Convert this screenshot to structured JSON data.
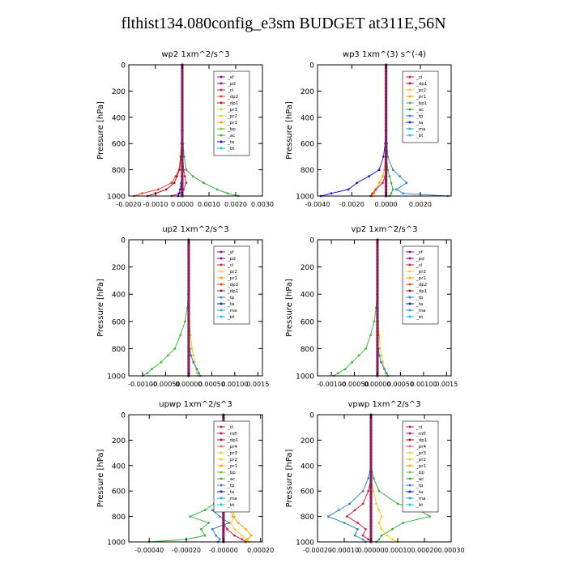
{
  "figure_title": "flthist134.080config_e3sm  BUDGET at311E,56N",
  "colors": {
    "sf": "#8b1a8b",
    "pd": "#7a1a9c",
    "cl": "#d4244a",
    "dp1": "#b01818",
    "dp2": "#e8413b",
    "pr1": "#ffa500",
    "pr2": "#f0d020",
    "pr3": "#c8e040",
    "pr4": "#e86060",
    "bp": "#66cc33",
    "bp1": "#44bb44",
    "ac": "#3cb043",
    "tp": "#3388cc",
    "ta": "#1a1acc",
    "ma": "#33aacc",
    "bt": "#00ccee",
    "mfl": "#aa2266",
    "bt_red": "#dd0000"
  },
  "chart_data": [
    {
      "id": "wp2",
      "type": "line",
      "title": "wp2  1xm^2/s^3",
      "ylabel": "Pressure [hPa]",
      "ylim": [
        1000,
        0
      ],
      "xlim": [
        -0.002,
        0.003
      ],
      "xticks": [
        -0.002,
        -0.001,
        0.0,
        0.001,
        0.002,
        0.003
      ],
      "xticklabels": [
        "-0.0020",
        "-0.0010",
        "0.0000",
        "0.0010",
        "0.0020",
        "0.0030"
      ],
      "yticks": [
        0,
        200,
        400,
        600,
        800,
        1000
      ],
      "legend": [
        "_sf",
        "_pd",
        "_cl",
        "_dp2",
        "_dp1",
        "_pr3",
        "_pr2",
        "_pr1",
        "_bp",
        "_ac",
        "_ta",
        "_bt"
      ],
      "legend_colors": [
        "sf",
        "pd",
        "cl",
        "dp2",
        "dp1",
        "pr3",
        "pr2",
        "pr1",
        "bp",
        "ac",
        "ta",
        "bt"
      ],
      "p": [
        0,
        200,
        400,
        500,
        600,
        700,
        800,
        850,
        900,
        950,
        980,
        1000
      ],
      "series": [
        {
          "c": "dp2",
          "x": [
            0,
            0,
            0,
            -1e-05,
            -3e-05,
            -6e-05,
            -0.00012,
            -0.00025,
            -0.0004,
            -0.0009,
            -0.0015,
            -0.0018
          ]
        },
        {
          "c": "dp1",
          "x": [
            0,
            0,
            0,
            -1e-05,
            -2e-05,
            -5e-05,
            -0.0001,
            -0.0002,
            -0.0003,
            -0.0006,
            -0.001,
            -0.0013
          ]
        },
        {
          "c": "cl",
          "x": [
            0,
            0,
            0,
            0,
            1e-05,
            2e-05,
            5e-05,
            0.0001,
            0.00015,
            5e-05,
            -0.0001,
            -0.0004
          ]
        },
        {
          "c": "ac",
          "x": [
            0,
            0,
            0,
            1e-05,
            3e-05,
            7e-05,
            0.00015,
            0.0004,
            0.0008,
            0.0013,
            0.0017,
            0.0021
          ]
        },
        {
          "c": "ta",
          "x": [
            0,
            0,
            0,
            0,
            0,
            0,
            -1e-05,
            -2e-05,
            -4e-05,
            -8e-05,
            -0.00012,
            -0.00015
          ]
        },
        {
          "c": "pd",
          "x": [
            0,
            0,
            0,
            0,
            0,
            0,
            0,
            0,
            0,
            0,
            0,
            0
          ]
        }
      ]
    },
    {
      "id": "wp3",
      "type": "line",
      "title": "wp3  1xm^(3) s^(-4)",
      "ylabel": "Pressure [hPa]",
      "ylim": [
        1000,
        0
      ],
      "xlim": [
        -0.004,
        0.0038
      ],
      "xticks": [
        -0.004,
        -0.002,
        0.0,
        0.002
      ],
      "xticklabels": [
        "-0.0040",
        "-0.0020",
        "0.0000",
        "0.0020"
      ],
      "yticks": [
        0,
        200,
        400,
        600,
        800,
        1000
      ],
      "legend": [
        "_cl",
        "_dp1",
        "_pr2",
        "_pr1",
        "_bp1",
        "_ac",
        "_tp",
        "_ta",
        "_ma",
        "_bt"
      ],
      "legend_colors": [
        "cl",
        "dp1",
        "pr2",
        "pr1",
        "bp1",
        "ac",
        "tp",
        "ta",
        "ma",
        "bt"
      ],
      "p": [
        0,
        200,
        400,
        500,
        600,
        700,
        800,
        850,
        900,
        950,
        980,
        1000
      ],
      "series": [
        {
          "c": "tp",
          "x": [
            0,
            0,
            0,
            2e-05,
            5e-05,
            0.0001,
            0.0004,
            0.0008,
            0.0012,
            0.0006,
            0.001,
            0.0036
          ]
        },
        {
          "c": "ta",
          "x": [
            0,
            0,
            0,
            -2e-05,
            -5e-05,
            -0.00015,
            -0.0004,
            -0.001,
            -0.0017,
            -0.0022,
            -0.0032,
            -0.0038
          ]
        },
        {
          "c": "ac",
          "x": [
            0,
            0,
            0,
            0,
            0,
            3e-05,
            0.0001,
            0.0002,
            0.0003,
            0.0004,
            0.0003,
            0.0002
          ]
        },
        {
          "c": "pr1",
          "x": [
            0,
            0,
            0,
            0,
            -2e-05,
            -5e-05,
            -0.0001,
            -0.0002,
            -0.0004,
            -0.0006,
            -0.0007,
            -0.0008
          ]
        },
        {
          "c": "cl",
          "x": [
            0,
            0,
            0,
            0,
            0,
            0,
            -2e-05,
            -5e-05,
            -0.0002,
            -0.0006,
            -0.0008,
            -0.0009
          ]
        },
        {
          "c": "dp1",
          "x": [
            0,
            0,
            0,
            0,
            0,
            0,
            0,
            0,
            0,
            0,
            0,
            0
          ]
        }
      ]
    },
    {
      "id": "up2",
      "type": "line",
      "title": "up2  1xm^2/s^3",
      "ylabel": "Pressure [hPa]",
      "ylim": [
        1000,
        0
      ],
      "xlim": [
        -0.0013,
        0.0016
      ],
      "xticks": [
        -0.001,
        -0.0005,
        0.0,
        0.0005,
        0.001,
        0.0015
      ],
      "xticklabels": [
        "-0.00100",
        "-0.00050",
        "0.00000",
        "0.00050",
        "0.00100",
        "0.0015"
      ],
      "yticks": [
        0,
        200,
        400,
        600,
        800,
        1000
      ],
      "legend": [
        "_sf",
        "_pd",
        "_cl",
        "_pr2",
        "_pr1",
        "_dp2",
        "_dp1",
        "_tp",
        "_ta",
        "_ma",
        "_bt"
      ],
      "legend_colors": [
        "sf",
        "pd",
        "cl",
        "pr2",
        "pr1",
        "dp2",
        "dp1",
        "tp",
        "ta",
        "ma",
        "bt"
      ],
      "p": [
        0,
        200,
        400,
        500,
        600,
        700,
        800,
        850,
        900,
        950,
        980,
        1000
      ],
      "series": [
        {
          "c": "bp1",
          "x": [
            0,
            0,
            -1e-05,
            -3e-05,
            -8e-05,
            -0.00018,
            -0.0003,
            -0.00045,
            -0.0006,
            -0.0008,
            -0.0009,
            -0.001
          ]
        },
        {
          "c": "pr2",
          "x": [
            0,
            0,
            0,
            1e-05,
            2e-05,
            4e-05,
            7e-05,
            0.0001,
            0.00013,
            0.00016,
            0.00018,
            0.0002
          ]
        },
        {
          "c": "tp",
          "x": [
            0,
            0,
            0,
            0,
            0,
            1e-05,
            2e-05,
            5e-05,
            0.0001,
            0.00018,
            0.00022,
            0.00025
          ]
        },
        {
          "c": "cl",
          "x": [
            0,
            0,
            0,
            0,
            0,
            0,
            0,
            0,
            0,
            0,
            0,
            0
          ]
        }
      ]
    },
    {
      "id": "vp2",
      "type": "line",
      "title": "vp2  1xm^2/s^3",
      "ylabel": "Pressure [hPa]",
      "ylim": [
        1000,
        0
      ],
      "xlim": [
        -0.0013,
        0.0016
      ],
      "xticks": [
        -0.001,
        -0.0005,
        0.0,
        0.0005,
        0.001,
        0.0015
      ],
      "xticklabels": [
        "-0.00100",
        "-0.00050",
        "0.00000",
        "0.00050",
        "0.00100",
        "0.0015"
      ],
      "yticks": [
        0,
        200,
        400,
        600,
        800,
        1000
      ],
      "legend": [
        "_sf",
        "_pd",
        "_cl",
        "_pr2",
        "_pr1",
        "_dp2",
        "_dp1",
        "_tp",
        "_ta",
        "_ma",
        "_bt"
      ],
      "legend_colors": [
        "sf",
        "pd",
        "cl",
        "pr2",
        "pr1",
        "dp2",
        "dp1",
        "tp",
        "ta",
        "ma",
        "bt"
      ],
      "p": [
        0,
        200,
        400,
        500,
        600,
        700,
        800,
        850,
        900,
        950,
        980,
        1000
      ],
      "series": [
        {
          "c": "bp1",
          "x": [
            0,
            0,
            -1e-05,
            -3e-05,
            -7e-05,
            -0.00015,
            -0.00025,
            -0.0004,
            -0.00055,
            -0.0007,
            -0.00085,
            -0.00095
          ]
        },
        {
          "c": "pr2",
          "x": [
            0,
            0,
            0,
            1e-05,
            2e-05,
            4e-05,
            6e-05,
            9e-05,
            0.00012,
            0.00015,
            0.00017,
            0.00019
          ]
        },
        {
          "c": "tp",
          "x": [
            0,
            0,
            0,
            0,
            0,
            1e-05,
            2e-05,
            4e-05,
            8e-05,
            0.00015,
            0.0002,
            0.00023
          ]
        },
        {
          "c": "cl",
          "x": [
            0,
            0,
            0,
            0,
            0,
            0,
            0,
            0,
            0,
            0,
            0,
            0
          ]
        }
      ]
    },
    {
      "id": "upwp",
      "type": "line",
      "title": "upwp  1xm^2/s^3",
      "ylabel": "Pressure [hPa]",
      "ylim": [
        1000,
        0
      ],
      "xlim": [
        -0.00051,
        0.00021
      ],
      "xticks": [
        -0.0004,
        -0.0002,
        0.0,
        0.0002
      ],
      "xticklabels": [
        "-0.00040",
        "-0.00020",
        "-0.00000",
        "0.00020"
      ],
      "yticks": [
        0,
        200,
        400,
        600,
        800,
        1000
      ],
      "legend": [
        "_cl",
        "_mfl",
        "_dp1",
        "_pr4",
        "_pr3",
        "_pr2",
        "_pr1",
        "_bp",
        "_ac",
        "_tp",
        "_ta",
        "_ma",
        "_bt"
      ],
      "legend_colors": [
        "cl",
        "mfl",
        "dp1",
        "pr4",
        "pr3",
        "pr2",
        "pr1",
        "bp",
        "ac",
        "tp",
        "ta",
        "ma",
        "bt"
      ],
      "p": [
        0,
        200,
        400,
        500,
        600,
        700,
        750,
        800,
        850,
        900,
        950,
        980,
        1000
      ],
      "series": [
        {
          "c": "ac",
          "x": [
            0,
            0,
            0,
            2e-05,
            3e-05,
            -5e-05,
            -0.0001,
            -0.00018,
            -8e-05,
            -0.00012,
            -0.0001,
            -0.0002,
            -0.0004
          ]
        },
        {
          "c": "pr2",
          "x": [
            0,
            0,
            0,
            1e-05,
            2e-05,
            4e-05,
            5e-05,
            6e-05,
            4e-05,
            6e-05,
            0.0001,
            0.00012,
            0.00014
          ]
        },
        {
          "c": "tp",
          "x": [
            0,
            0,
            0,
            -1e-05,
            -2e-05,
            2e-05,
            -6e-05,
            -2e-05,
            3e-05,
            -6e-05,
            -4e-05,
            -2e-05,
            -3e-05
          ]
        },
        {
          "c": "pr1",
          "x": [
            0,
            0,
            0,
            1e-05,
            1e-05,
            3e-05,
            4e-05,
            5e-05,
            8e-05,
            0.00012,
            0.00015,
            0.00013,
            0.00012
          ]
        },
        {
          "c": "cl",
          "x": [
            0,
            0,
            0,
            0,
            0,
            0,
            0,
            0,
            0,
            2e-05,
            6e-05,
            0.0001,
            0.00012
          ]
        },
        {
          "c": "mfl",
          "x": [
            0,
            0,
            0,
            0,
            0,
            0,
            0,
            0,
            0,
            0,
            0,
            0,
            0
          ]
        }
      ]
    },
    {
      "id": "vpwp",
      "type": "line",
      "title": "vpwp  1xm^2/s^3",
      "ylabel": "Pressure [hPa]",
      "ylim": [
        1000,
        0
      ],
      "xlim": [
        -0.0002,
        0.0003
      ],
      "xticks": [
        -0.0002,
        -0.0001,
        0.0,
        0.0001,
        0.0002,
        0.0003
      ],
      "xticklabels": [
        "-0.00020",
        "-0.00010",
        "0.00000",
        "0.00010",
        "0.00020",
        "0.00030"
      ],
      "yticks": [
        0,
        200,
        400,
        600,
        800,
        1000
      ],
      "legend": [
        "_cl",
        "_mfl",
        "_dp1",
        "_pr4",
        "_pr3",
        "_pr2",
        "_pr1",
        "_bp",
        "_ac",
        "_tp",
        "_ta",
        "_ma",
        "_bt"
      ],
      "legend_colors": [
        "cl",
        "mfl",
        "dp1",
        "pr4",
        "pr3",
        "pr2",
        "pr1",
        "bp",
        "ac",
        "tp",
        "ta",
        "ma",
        "bt"
      ],
      "p": [
        0,
        200,
        400,
        500,
        600,
        700,
        750,
        800,
        850,
        900,
        950,
        980,
        1000
      ],
      "series": [
        {
          "c": "ac",
          "x": [
            0,
            0,
            0,
            1e-05,
            3e-05,
            0.0001,
            0.00018,
            0.00022,
            0.00012,
            8e-05,
            4e-05,
            3e-05,
            2e-05
          ]
        },
        {
          "c": "tp",
          "x": [
            0,
            0,
            0,
            -1e-05,
            -3e-05,
            -8e-05,
            -0.00012,
            -0.00016,
            -0.0001,
            -5e-05,
            -6e-05,
            -3e-05,
            -2e-05
          ]
        },
        {
          "c": "cl",
          "x": [
            0,
            0,
            0,
            0,
            -1e-05,
            -3e-05,
            -6e-05,
            -9e-05,
            -5e-05,
            -2e-05,
            -3e-05,
            -1e-05,
            0
          ]
        },
        {
          "c": "pr2",
          "x": [
            0,
            0,
            0,
            0,
            1e-05,
            2e-05,
            3e-05,
            4e-05,
            3e-05,
            4e-05,
            6e-05,
            8e-05,
            0.0001
          ]
        },
        {
          "c": "mfl",
          "x": [
            0,
            0,
            0,
            0,
            0,
            0,
            0,
            0,
            0,
            0,
            0,
            0,
            0
          ]
        }
      ]
    }
  ]
}
